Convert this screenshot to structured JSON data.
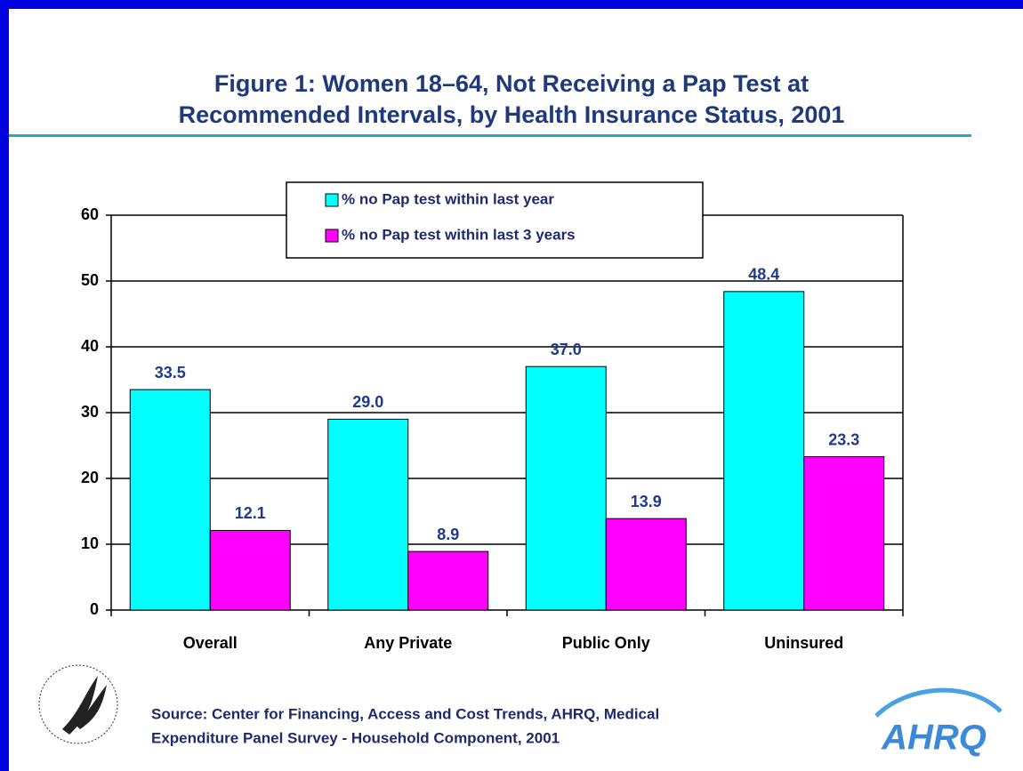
{
  "chart_data": {
    "type": "bar",
    "title": [
      "Figure 1: Women 18–64, Not Receiving a Pap Test at",
      "Recommended Intervals, by Health Insurance Status, 2001"
    ],
    "categories": [
      "Overall",
      "Any Private",
      "Public Only",
      "Uninsured"
    ],
    "series": [
      {
        "name": "% no Pap test within last year",
        "color": "#00ffff",
        "values": [
          33.5,
          29,
          37,
          48.4
        ],
        "value_labels": [
          "33.5",
          "29.0",
          "37.0",
          "48.4"
        ]
      },
      {
        "name": "% no Pap test within last 3 years",
        "color": "#ff00ff",
        "values": [
          12.1,
          8.9,
          13.9,
          23.3
        ],
        "value_labels": [
          "12.1",
          "8.9",
          "13.9",
          "23.3"
        ]
      }
    ],
    "ylim": [
      0,
      60
    ],
    "yticks": [
      0,
      10,
      20,
      30,
      40,
      50,
      60
    ],
    "grid": true,
    "legend": "top",
    "source": [
      "Source:  Center for Financing, Access and Cost Trends, AHRQ, Medical",
      "Expenditure Panel Survey - Household Component, 2001"
    ],
    "logo": "AHRQ"
  }
}
